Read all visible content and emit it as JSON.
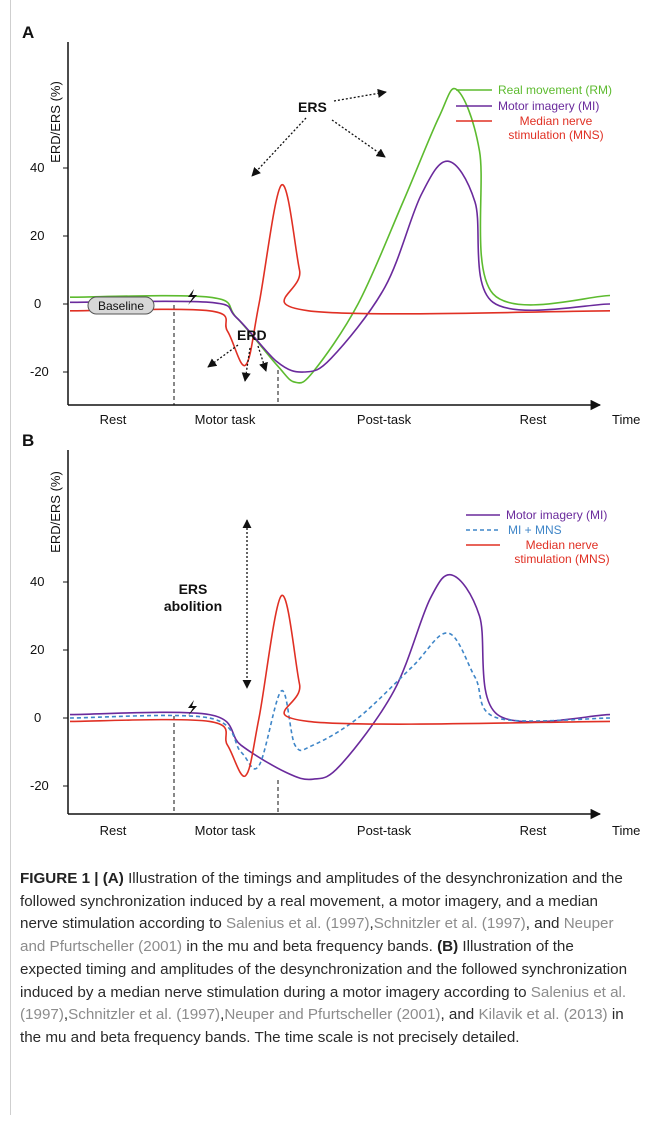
{
  "panel_a": {
    "label": "A",
    "ylabel": "ERD/ERS (%)",
    "yticks": [
      "40",
      "20",
      "0",
      "-20"
    ],
    "xlabels": [
      "Rest",
      "Motor task",
      "Post-task",
      "Rest",
      "Time"
    ],
    "legend": [
      {
        "label": "Real movement (RM)",
        "color": "#5dbb2f"
      },
      {
        "label": "Motor imagery (MI)",
        "color": "#6a2a9c"
      },
      {
        "label": "Median nerve",
        "color": "#e03024"
      },
      {
        "label": "stimulation (MNS)",
        "color": "#e03024"
      }
    ],
    "annotations": {
      "ers": "ERS",
      "erd": "ERD",
      "baseline": "Baseline"
    }
  },
  "panel_b": {
    "label": "B",
    "ylabel": "ERD/ERS (%)",
    "yticks": [
      "40",
      "20",
      "0",
      "-20"
    ],
    "xlabels": [
      "Rest",
      "Motor task",
      "Post-task",
      "Rest",
      "Time"
    ],
    "legend": [
      {
        "label": "Motor imagery (MI)",
        "color": "#6a2a9c"
      },
      {
        "label": "MI + MNS",
        "color": "#3f86c8"
      },
      {
        "label": "Median nerve",
        "color": "#e03024"
      },
      {
        "label": "stimulation (MNS)",
        "color": "#e03024"
      }
    ],
    "annotations": {
      "ers_line1": "ERS",
      "ers_line2": "abolition"
    }
  },
  "chart_data": [
    {
      "type": "line",
      "panel": "A",
      "ylabel": "ERD/ERS (%)",
      "yticks": [
        40,
        20,
        0,
        -20
      ],
      "ylim": [
        -28,
        65
      ],
      "phases": [
        "Rest",
        "Motor task",
        "Post-task",
        "Rest"
      ],
      "xlabel": "Time",
      "series": [
        {
          "name": "Real movement (RM)",
          "color": "#5dbb2f",
          "points": [
            [
              0,
              2
            ],
            [
              1.55,
              2
            ],
            [
              1.85,
              -4
            ],
            [
              2.3,
              -18
            ],
            [
              2.5,
              -23
            ],
            [
              2.7,
              -20
            ],
            [
              3.2,
              0
            ],
            [
              3.7,
              30
            ],
            [
              4.1,
              55
            ],
            [
              4.3,
              63
            ],
            [
              4.55,
              45
            ],
            [
              4.7,
              3
            ],
            [
              6,
              2.5
            ]
          ]
        },
        {
          "name": "Motor imagery (MI)",
          "color": "#6a2a9c",
          "points": [
            [
              0,
              0.5
            ],
            [
              1.55,
              0.5
            ],
            [
              1.85,
              -4
            ],
            [
              2.3,
              -17
            ],
            [
              2.6,
              -20
            ],
            [
              2.9,
              -16
            ],
            [
              3.5,
              5
            ],
            [
              3.9,
              32
            ],
            [
              4.2,
              42
            ],
            [
              4.5,
              30
            ],
            [
              4.7,
              0.5
            ],
            [
              6,
              0
            ]
          ]
        },
        {
          "name": "Median nerve stimulation (MNS)",
          "color": "#e03024",
          "points": [
            [
              0,
              -2
            ],
            [
              1.55,
              -2
            ],
            [
              1.75,
              -8
            ],
            [
              1.95,
              -18
            ],
            [
              2.1,
              0
            ],
            [
              2.35,
              35
            ],
            [
              2.55,
              10
            ],
            [
              2.65,
              -2
            ],
            [
              6,
              -2
            ]
          ]
        }
      ]
    },
    {
      "type": "line",
      "panel": "B",
      "ylabel": "ERD/ERS (%)",
      "yticks": [
        40,
        20,
        0,
        -20
      ],
      "ylim": [
        -28,
        65
      ],
      "phases": [
        "Rest",
        "Motor task",
        "Post-task",
        "Rest"
      ],
      "xlabel": "Time",
      "series": [
        {
          "name": "Motor imagery (MI)",
          "color": "#6a2a9c",
          "points": [
            [
              0,
              1
            ],
            [
              1.55,
              1
            ],
            [
              1.9,
              -8
            ],
            [
              2.4,
              -16
            ],
            [
              2.7,
              -18
            ],
            [
              3.0,
              -14
            ],
            [
              3.6,
              8
            ],
            [
              4.0,
              35
            ],
            [
              4.25,
              42
            ],
            [
              4.55,
              30
            ],
            [
              4.75,
              1
            ],
            [
              6,
              1
            ]
          ]
        },
        {
          "name": "MI + MNS",
          "color": "#3f86c8",
          "points": [
            [
              0,
              0
            ],
            [
              1.55,
              0
            ],
            [
              1.9,
              -10
            ],
            [
              2.1,
              -14
            ],
            [
              2.35,
              8
            ],
            [
              2.5,
              -8
            ],
            [
              2.7,
              -8
            ],
            [
              3.2,
              0
            ],
            [
              3.8,
              15
            ],
            [
              4.2,
              25
            ],
            [
              4.5,
              12
            ],
            [
              4.75,
              0
            ],
            [
              6,
              0
            ]
          ]
        },
        {
          "name": "Median nerve stimulation (MNS)",
          "color": "#e03024",
          "points": [
            [
              0,
              -1
            ],
            [
              1.55,
              -1
            ],
            [
              1.75,
              -8
            ],
            [
              1.95,
              -17
            ],
            [
              2.1,
              0
            ],
            [
              2.35,
              36
            ],
            [
              2.55,
              10
            ],
            [
              2.65,
              -1
            ],
            [
              6,
              -1
            ]
          ]
        }
      ]
    }
  ],
  "caption": {
    "fig": "FIGURE 1 |",
    "a_label": "(A)",
    "a_text": " Illustration of the timings and amplitudes of the desynchronization and the followed synchronization induced by a real movement, a motor imagery, and a median nerve stimulation according to ",
    "a_ref1": "Salenius et al. (1997)",
    "a_sep1": ",",
    "a_ref2": "Schnitzler et al. (1997)",
    "a_sep2": ", and ",
    "a_ref3": "Neuper and Pfurtscheller (2001)",
    "a_tail": " in the mu and beta frequency bands. ",
    "b_label": "(B)",
    "b_text": " Illustration of the expected timing and amplitudes of the desynchronization and the followed synchronization induced by a median nerve stimulation during a motor imagery according to ",
    "b_ref1": "Salenius et al. (1997)",
    "b_sep1": ",",
    "b_ref2": "Schnitzler et al. (1997)",
    "b_sep2": ",",
    "b_ref3": "Neuper and Pfurtscheller (2001)",
    "b_sep3": ", and ",
    "b_ref4": "Kilavik et al. (2013)",
    "b_tail": " in the mu and beta frequency bands. The time scale is not precisely detailed."
  }
}
